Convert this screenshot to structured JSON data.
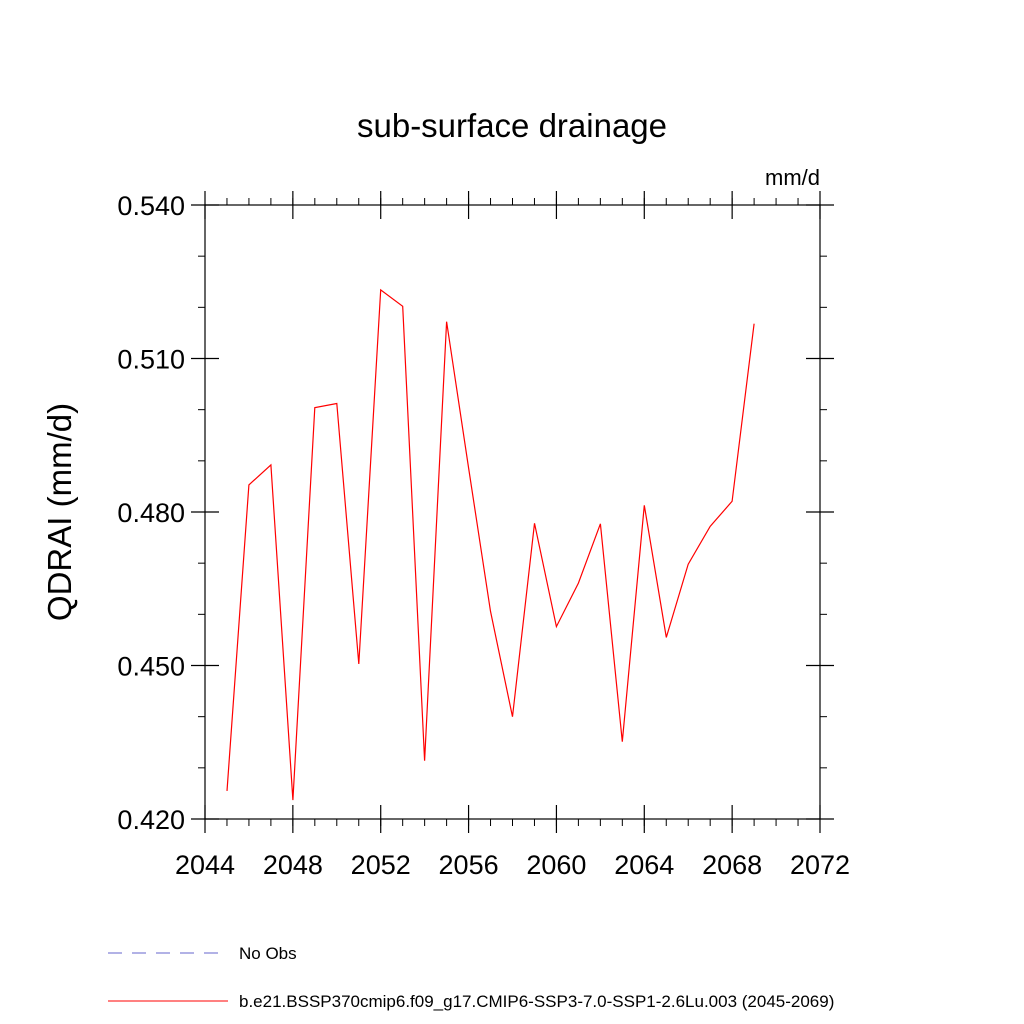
{
  "chart_data": {
    "type": "line",
    "title": "sub-surface drainage",
    "units_label": "mm/d",
    "ylabel": "QDRAI  (mm/d)",
    "xlabel": "",
    "xlim": [
      2044,
      2072
    ],
    "ylim": [
      0.42,
      0.54
    ],
    "x_ticks": [
      2044,
      2048,
      2052,
      2056,
      2060,
      2064,
      2068,
      2072
    ],
    "x_tick_labels": [
      "2044",
      "2048",
      "2052",
      "2056",
      "2060",
      "2064",
      "2068",
      "2072"
    ],
    "x_minor_step": 1,
    "y_ticks": [
      0.42,
      0.45,
      0.48,
      0.51,
      0.54
    ],
    "y_tick_labels": [
      "0.420",
      "0.450",
      "0.480",
      "0.510",
      "0.540"
    ],
    "y_minor_step": 0.01,
    "grid": false,
    "series": [
      {
        "name": "b.e21.BSSP370cmip6.f09_g17.CMIP6-SSP3-7.0-SSP1-2.6Lu.003 (2045-2069)",
        "color": "#ff0000",
        "dash": "solid",
        "x": [
          2045,
          2046,
          2047,
          2048,
          2049,
          2050,
          2051,
          2052,
          2053,
          2054,
          2055,
          2056,
          2057,
          2058,
          2059,
          2060,
          2061,
          2062,
          2063,
          2064,
          2065,
          2066,
          2067,
          2068,
          2069
        ],
        "y": [
          0.4255,
          0.4853,
          0.4892,
          0.4237,
          0.5004,
          0.5012,
          0.4503,
          0.5234,
          0.5202,
          0.4314,
          0.5172,
          0.4886,
          0.4606,
          0.44,
          0.4778,
          0.4576,
          0.4661,
          0.4777,
          0.4351,
          0.4813,
          0.4555,
          0.4698,
          0.4772,
          0.4821,
          0.5168
        ]
      }
    ],
    "legend": {
      "placement": "bottom-left",
      "entries": [
        {
          "label": "No Obs",
          "color": "#6666cc",
          "dash": "dashed"
        },
        {
          "label": "b.e21.BSSP370cmip6.f09_g17.CMIP6-SSP3-7.0-SSP1-2.6Lu.003 (2045-2069)",
          "color": "#ff0000",
          "dash": "solid"
        }
      ]
    }
  }
}
